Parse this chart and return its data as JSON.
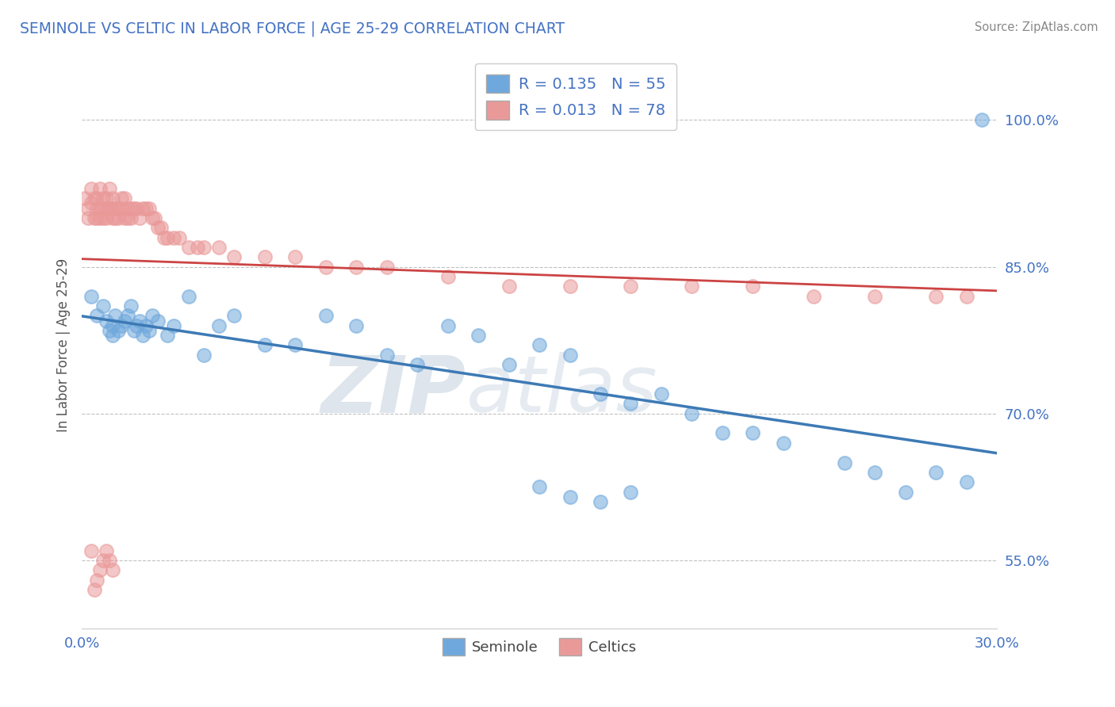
{
  "title": "SEMINOLE VS CELTIC IN LABOR FORCE | AGE 25-29 CORRELATION CHART",
  "source": "Source: ZipAtlas.com",
  "ylabel": "In Labor Force | Age 25-29",
  "xlim": [
    0.0,
    0.3
  ],
  "ylim": [
    0.48,
    1.06
  ],
  "xticks": [
    0.0,
    0.05,
    0.1,
    0.15,
    0.2,
    0.25,
    0.3
  ],
  "xtick_labels": [
    "0.0%",
    "",
    "",
    "",
    "",
    "",
    "30.0%"
  ],
  "yticks": [
    0.55,
    0.7,
    0.85,
    1.0
  ],
  "ytick_labels": [
    "55.0%",
    "70.0%",
    "85.0%",
    "100.0%"
  ],
  "legend_r_seminole": "R = 0.135",
  "legend_n_seminole": "N = 55",
  "legend_r_celtics": "R = 0.013",
  "legend_n_celtics": "N = 78",
  "seminole_color": "#6fa8dc",
  "celtics_color": "#ea9999",
  "trend_seminole_color": "#3d7ab5",
  "trend_celtics_color": "#cc4444",
  "watermark_zip": "ZIP",
  "watermark_atlas": "atlas",
  "seminole_x": [
    0.003,
    0.005,
    0.007,
    0.008,
    0.009,
    0.01,
    0.01,
    0.011,
    0.012,
    0.013,
    0.014,
    0.015,
    0.016,
    0.017,
    0.018,
    0.019,
    0.02,
    0.021,
    0.022,
    0.023,
    0.025,
    0.028,
    0.03,
    0.035,
    0.04,
    0.045,
    0.05,
    0.06,
    0.07,
    0.08,
    0.09,
    0.1,
    0.11,
    0.12,
    0.13,
    0.14,
    0.15,
    0.16,
    0.17,
    0.18,
    0.19,
    0.2,
    0.21,
    0.22,
    0.23,
    0.25,
    0.26,
    0.27,
    0.28,
    0.29,
    0.15,
    0.16,
    0.17,
    0.18,
    0.295
  ],
  "seminole_y": [
    0.82,
    0.8,
    0.81,
    0.795,
    0.785,
    0.78,
    0.79,
    0.8,
    0.785,
    0.79,
    0.795,
    0.8,
    0.81,
    0.785,
    0.79,
    0.795,
    0.78,
    0.79,
    0.785,
    0.8,
    0.795,
    0.78,
    0.79,
    0.82,
    0.76,
    0.79,
    0.8,
    0.77,
    0.77,
    0.8,
    0.79,
    0.76,
    0.75,
    0.79,
    0.78,
    0.75,
    0.77,
    0.76,
    0.72,
    0.71,
    0.72,
    0.7,
    0.68,
    0.68,
    0.67,
    0.65,
    0.64,
    0.62,
    0.64,
    0.63,
    0.625,
    0.615,
    0.61,
    0.62,
    1.0
  ],
  "celtics_x": [
    0.001,
    0.002,
    0.002,
    0.003,
    0.003,
    0.004,
    0.004,
    0.005,
    0.005,
    0.005,
    0.006,
    0.006,
    0.006,
    0.007,
    0.007,
    0.007,
    0.008,
    0.008,
    0.008,
    0.009,
    0.009,
    0.01,
    0.01,
    0.01,
    0.011,
    0.011,
    0.012,
    0.012,
    0.013,
    0.013,
    0.014,
    0.014,
    0.015,
    0.015,
    0.016,
    0.016,
    0.017,
    0.018,
    0.019,
    0.02,
    0.021,
    0.022,
    0.023,
    0.024,
    0.025,
    0.026,
    0.027,
    0.028,
    0.03,
    0.032,
    0.035,
    0.038,
    0.04,
    0.045,
    0.05,
    0.06,
    0.07,
    0.08,
    0.09,
    0.1,
    0.12,
    0.14,
    0.16,
    0.18,
    0.2,
    0.22,
    0.24,
    0.26,
    0.28,
    0.29,
    0.003,
    0.004,
    0.005,
    0.006,
    0.007,
    0.008,
    0.009,
    0.01
  ],
  "celtics_y": [
    0.92,
    0.91,
    0.9,
    0.93,
    0.915,
    0.9,
    0.92,
    0.91,
    0.9,
    0.92,
    0.93,
    0.91,
    0.9,
    0.92,
    0.91,
    0.9,
    0.92,
    0.91,
    0.9,
    0.91,
    0.93,
    0.91,
    0.9,
    0.92,
    0.91,
    0.9,
    0.91,
    0.9,
    0.92,
    0.91,
    0.9,
    0.92,
    0.91,
    0.9,
    0.91,
    0.9,
    0.91,
    0.91,
    0.9,
    0.91,
    0.91,
    0.91,
    0.9,
    0.9,
    0.89,
    0.89,
    0.88,
    0.88,
    0.88,
    0.88,
    0.87,
    0.87,
    0.87,
    0.87,
    0.86,
    0.86,
    0.86,
    0.85,
    0.85,
    0.85,
    0.84,
    0.83,
    0.83,
    0.83,
    0.83,
    0.83,
    0.82,
    0.82,
    0.82,
    0.82,
    0.56,
    0.52,
    0.53,
    0.54,
    0.55,
    0.56,
    0.55,
    0.54
  ]
}
